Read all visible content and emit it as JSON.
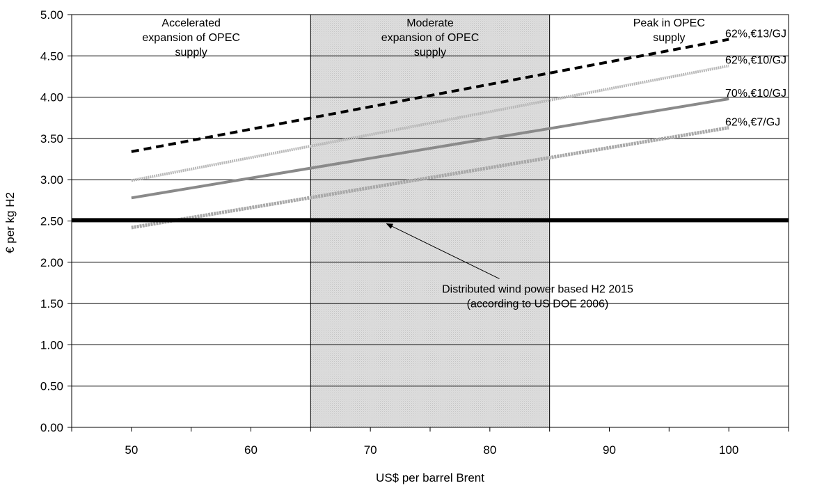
{
  "chart_data": {
    "type": "line",
    "xlabel": "US$ per barrel Brent",
    "ylabel": "€ per kg H2",
    "xlim": [
      45,
      105
    ],
    "ylim": [
      0,
      5
    ],
    "x_ticks": [
      50,
      60,
      70,
      80,
      90,
      100
    ],
    "y_ticks": [
      "0.00",
      "0.50",
      "1.00",
      "1.50",
      "2.00",
      "2.50",
      "3.00",
      "3.50",
      "4.00",
      "4.50",
      "5.00"
    ],
    "grid": "horizontal",
    "shaded_band": {
      "x_start": 65,
      "x_end": 85
    },
    "regions": [
      {
        "lines": [
          "Accelerated",
          "expansion of OPEC",
          "supply"
        ],
        "x_center": 55
      },
      {
        "lines": [
          "Moderate",
          "expansion of OPEC",
          "supply"
        ],
        "x_center": 75
      },
      {
        "lines": [
          "Peak in OPEC",
          "supply"
        ],
        "x_center": 95
      }
    ],
    "series": [
      {
        "name": "62%,€13/GJ",
        "x": [
          50,
          100
        ],
        "values": [
          3.34,
          4.7
        ],
        "style": "dashed",
        "color": "#000000"
      },
      {
        "name": "62%,€10/GJ",
        "x": [
          50,
          100
        ],
        "values": [
          2.99,
          4.38
        ],
        "style": "dotted-light",
        "color": "#b8b8b8"
      },
      {
        "name": "70%,€10/GJ",
        "x": [
          50,
          100
        ],
        "values": [
          2.78,
          3.98
        ],
        "style": "solid-grey",
        "color": "#8a8a8a"
      },
      {
        "name": "62%,€7/GJ",
        "x": [
          50,
          100
        ],
        "values": [
          2.42,
          3.63
        ],
        "style": "light",
        "color": "#a8a8a8"
      }
    ],
    "reference_line": {
      "value": 2.51,
      "color": "#000000"
    },
    "annotation": {
      "lines": [
        "Distributed wind power based H2 2015",
        "(according to US DOE 2006)"
      ],
      "target_x": 71,
      "target_y": 2.51,
      "text_x": 84,
      "text_y": 1.75
    }
  }
}
